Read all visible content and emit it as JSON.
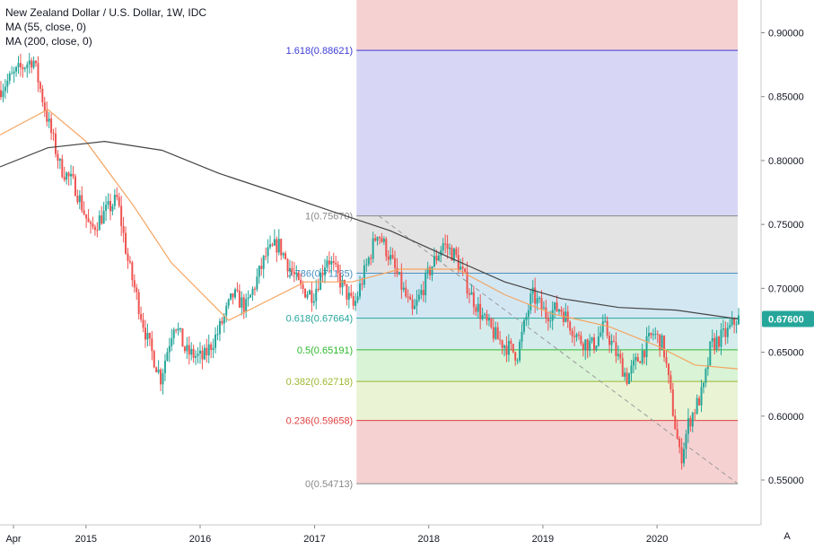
{
  "legend": {
    "symbol": "New Zealand Dollar / U.S. Dollar, 1W, IDC",
    "ma55": "MA (55, close, 0)",
    "ma200": "MA (200, close, 0)"
  },
  "colors": {
    "up": "#26a69a",
    "down": "#ef5350",
    "ma55": "#f4a460",
    "ma200": "#444444",
    "price_tag": "#26a69a"
  },
  "auto_button": "A",
  "chart_data": {
    "type": "candlestick",
    "title": "New Zealand Dollar / U.S. Dollar, 1W, IDC",
    "x_range": [
      "2014-04-01",
      "2020-09-15"
    ],
    "ylim": [
      0.54,
      0.925
    ],
    "y_scale": "linear",
    "grid": false,
    "x_ticks": [
      "Apr",
      "2015",
      "2016",
      "2017",
      "2018",
      "2019",
      "2020"
    ],
    "y_ticks": [
      "0.90000",
      "0.85000",
      "0.80000",
      "0.75000",
      "0.70000",
      "0.65000",
      "0.60000",
      "0.55000"
    ],
    "last_price": "0.67600",
    "fibonacci": {
      "start": "2017-05-15",
      "end": "2020-09-15",
      "levels": [
        {
          "ratio": "1.618",
          "price": 0.88621,
          "label": "1.618(0.88621)",
          "color": "#3b3bd6"
        },
        {
          "ratio": "1",
          "price": 0.7567,
          "label": "1(0.75670)",
          "color": "#888888"
        },
        {
          "ratio": "0.786",
          "price": 0.71185,
          "label": "0.786(0.71185)",
          "color": "#4a90c4"
        },
        {
          "ratio": "0.618",
          "price": 0.67664,
          "label": "0.618(0.67664)",
          "color": "#26a69a"
        },
        {
          "ratio": "0.5",
          "price": 0.65191,
          "label": "0.5(0.65191)",
          "color": "#2eb82e"
        },
        {
          "ratio": "0.382",
          "price": 0.62718,
          "label": "0.382(0.62718)",
          "color": "#9bb82e"
        },
        {
          "ratio": "0.236",
          "price": 0.59658,
          "label": "0.236(0.59658)",
          "color": "#e04040"
        },
        {
          "ratio": "0",
          "price": 0.54713,
          "label": "0(0.54713)",
          "color": "#888888"
        }
      ]
    },
    "price_path": [
      [
        "2014-04-01",
        0.855
      ],
      [
        "2014-06-01",
        0.87
      ],
      [
        "2014-07-20",
        0.88
      ],
      [
        "2014-09-01",
        0.835
      ],
      [
        "2014-10-15",
        0.795
      ],
      [
        "2014-12-01",
        0.78
      ],
      [
        "2015-01-20",
        0.745
      ],
      [
        "2015-02-20",
        0.755
      ],
      [
        "2015-04-15",
        0.77
      ],
      [
        "2015-05-20",
        0.72
      ],
      [
        "2015-07-20",
        0.66
      ],
      [
        "2015-09-01",
        0.63
      ],
      [
        "2015-10-15",
        0.675
      ],
      [
        "2015-11-20",
        0.65
      ],
      [
        "2016-01-15",
        0.645
      ],
      [
        "2016-03-01",
        0.665
      ],
      [
        "2016-04-20",
        0.695
      ],
      [
        "2016-06-01",
        0.685
      ],
      [
        "2016-08-01",
        0.725
      ],
      [
        "2016-09-10",
        0.735
      ],
      [
        "2016-11-20",
        0.7
      ],
      [
        "2017-01-01",
        0.695
      ],
      [
        "2017-02-15",
        0.725
      ],
      [
        "2017-05-10",
        0.685
      ],
      [
        "2017-07-25",
        0.745
      ],
      [
        "2017-09-01",
        0.725
      ],
      [
        "2017-11-15",
        0.68
      ],
      [
        "2018-01-10",
        0.715
      ],
      [
        "2018-02-20",
        0.735
      ],
      [
        "2018-04-01",
        0.725
      ],
      [
        "2018-05-20",
        0.695
      ],
      [
        "2018-07-01",
        0.675
      ],
      [
        "2018-08-15",
        0.66
      ],
      [
        "2018-10-15",
        0.648
      ],
      [
        "2018-12-01",
        0.695
      ],
      [
        "2019-01-15",
        0.68
      ],
      [
        "2019-03-01",
        0.685
      ],
      [
        "2019-05-01",
        0.66
      ],
      [
        "2019-06-15",
        0.655
      ],
      [
        "2019-07-20",
        0.67
      ],
      [
        "2019-10-01",
        0.63
      ],
      [
        "2019-12-25",
        0.665
      ],
      [
        "2020-01-25",
        0.655
      ],
      [
        "2020-03-20",
        0.565
      ],
      [
        "2020-04-15",
        0.595
      ],
      [
        "2020-06-01",
        0.62
      ],
      [
        "2020-06-25",
        0.655
      ],
      [
        "2020-08-15",
        0.665
      ],
      [
        "2020-09-15",
        0.676
      ]
    ],
    "ma55_path": [
      [
        "2014-04-01",
        0.82
      ],
      [
        "2014-09-01",
        0.84
      ],
      [
        "2015-01-01",
        0.815
      ],
      [
        "2015-06-01",
        0.765
      ],
      [
        "2015-10-01",
        0.72
      ],
      [
        "2016-04-01",
        0.675
      ],
      [
        "2016-08-01",
        0.69
      ],
      [
        "2016-12-01",
        0.705
      ],
      [
        "2017-05-01",
        0.705
      ],
      [
        "2017-10-01",
        0.715
      ],
      [
        "2018-04-01",
        0.715
      ],
      [
        "2018-09-01",
        0.695
      ],
      [
        "2019-02-01",
        0.68
      ],
      [
        "2019-08-01",
        0.67
      ],
      [
        "2020-01-01",
        0.655
      ],
      [
        "2020-05-01",
        0.64
      ],
      [
        "2020-09-15",
        0.637
      ]
    ],
    "ma200_path": [
      [
        "2014-04-01",
        0.795
      ],
      [
        "2014-09-01",
        0.81
      ],
      [
        "2015-03-01",
        0.815
      ],
      [
        "2015-09-01",
        0.808
      ],
      [
        "2016-03-01",
        0.79
      ],
      [
        "2016-09-01",
        0.775
      ],
      [
        "2017-03-01",
        0.76
      ],
      [
        "2017-09-01",
        0.745
      ],
      [
        "2018-03-01",
        0.725
      ],
      [
        "2018-09-01",
        0.705
      ],
      [
        "2019-03-01",
        0.692
      ],
      [
        "2019-09-01",
        0.685
      ],
      [
        "2020-03-01",
        0.683
      ],
      [
        "2020-09-15",
        0.676
      ]
    ],
    "trend_line": [
      [
        "2017-07-25",
        0.7567
      ],
      [
        "2020-09-15",
        0.5471
      ]
    ]
  }
}
